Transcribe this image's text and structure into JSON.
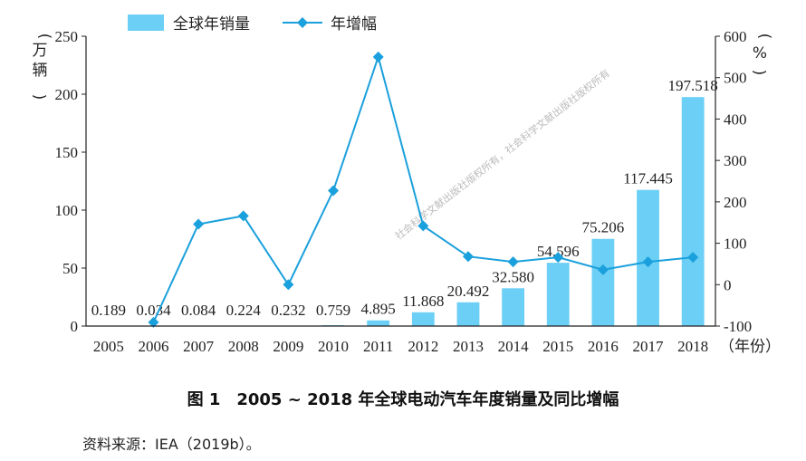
{
  "chart_data": {
    "type": "bar",
    "categories": [
      "2005",
      "2006",
      "2007",
      "2008",
      "2009",
      "2010",
      "2011",
      "2012",
      "2013",
      "2014",
      "2015",
      "2016",
      "2017",
      "2018"
    ],
    "series": [
      {
        "name": "全球年销量",
        "type": "bar",
        "axis": "left",
        "values": [
          0.189,
          0.034,
          0.084,
          0.224,
          0.232,
          0.759,
          4.895,
          11.868,
          20.492,
          32.58,
          54.596,
          75.206,
          117.445,
          197.518
        ],
        "labels": [
          "0.189",
          "0.034",
          "0.084",
          "0.224",
          "0.232",
          "0.759",
          "4.895",
          "11.868",
          "20.492",
          "32.580",
          "54.596",
          "75.206",
          "117.445",
          "197.518"
        ],
        "color": "#6ccff6"
      },
      {
        "name": "年增幅",
        "type": "line",
        "axis": "right",
        "values": [
          null,
          -91,
          146,
          166,
          0,
          227,
          550,
          142,
          68,
          55,
          66,
          36,
          55,
          66
        ],
        "color": "#1aa0dc"
      }
    ],
    "y_left": {
      "label": "万辆",
      "ylim": [
        0,
        250
      ],
      "ticks": [
        "0",
        "50",
        "100",
        "150",
        "200",
        "250"
      ]
    },
    "y_right": {
      "label": "%",
      "ylim": [
        -100,
        600
      ],
      "ticks": [
        "-100",
        "0",
        "100",
        "200",
        "300",
        "400",
        "500",
        "600"
      ]
    },
    "xlabel": "年份",
    "legend_placement": "top-left",
    "grid": false
  },
  "caption": {
    "number": "图 1",
    "title": "2005 ~ 2018 年全球电动汽车年度销量及同比增幅"
  },
  "source": "资料来源：IEA（2019b）。",
  "watermark": "社会科学文献出版社版权所有，社会科学文献出版社版权所有"
}
